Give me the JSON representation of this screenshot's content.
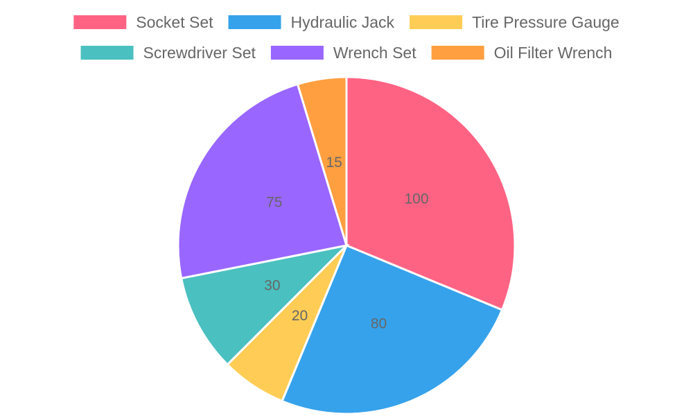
{
  "chart_data": {
    "type": "pie",
    "title": "",
    "legend_position": "top",
    "labels": [
      "Socket Set",
      "Hydraulic Jack",
      "Tire Pressure Gauge",
      "Screwdriver Set",
      "Wrench Set",
      "Oil Filter Wrench"
    ],
    "values": [
      100,
      80,
      20,
      30,
      75,
      15
    ],
    "colors": [
      "#ff6384",
      "#36a2eb",
      "#ffcd56",
      "#4bc0c0",
      "#9966ff",
      "#ff9f40"
    ]
  }
}
